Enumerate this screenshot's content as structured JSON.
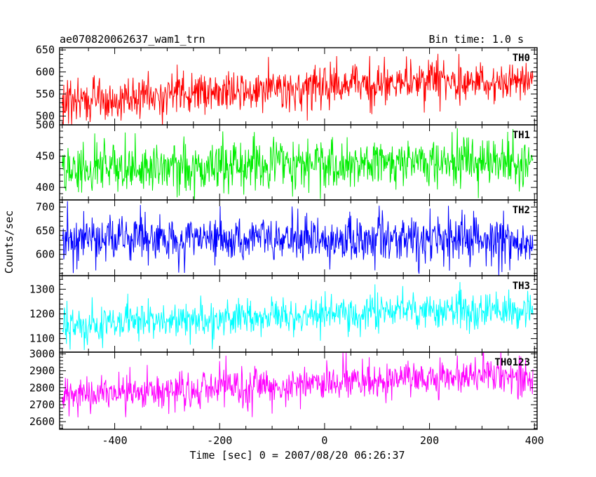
{
  "header": {
    "object_name": "ae070820062637_wam1_trn",
    "bin_time": "Bin time: 1.0 s"
  },
  "chart_data": {
    "type": "line",
    "xlabel": "Time [sec] 0 = 2007/08/20 06:26:37",
    "ylabel": "Counts/sec",
    "xlim": [
      -505,
      405
    ],
    "xticks": [
      -400,
      -200,
      0,
      200,
      400
    ],
    "x_start": -500,
    "x_end": 397,
    "bin_time_s": 1.0,
    "grid": false,
    "panels": [
      {
        "name": "TH0",
        "color": "#ff0000",
        "ylim": [
          480,
          655
        ],
        "yticks": [
          500,
          550,
          600,
          650
        ],
        "trend": {
          "x": [
            -500,
            -200,
            0,
            200,
            397
          ],
          "y": [
            530,
            555,
            568,
            577,
            580
          ]
        },
        "noise_sd": 24
      },
      {
        "name": "TH1",
        "color": "#00ee00",
        "ylim": [
          380,
          500
        ],
        "yticks": [
          400,
          450,
          500
        ],
        "trend": {
          "x": [
            -500,
            -200,
            0,
            200,
            397
          ],
          "y": [
            432,
            433,
            438,
            440,
            440
          ]
        },
        "noise_sd": 20
      },
      {
        "name": "TH2",
        "color": "#0000ff",
        "ylim": [
          555,
          715
        ],
        "yticks": [
          600,
          650,
          700
        ],
        "trend": {
          "x": [
            -500,
            -200,
            0,
            200,
            397
          ],
          "y": [
            632,
            633,
            632,
            633,
            632
          ]
        },
        "noise_sd": 25
      },
      {
        "name": "TH3",
        "color": "#00ffff",
        "ylim": [
          1045,
          1355
        ],
        "yticks": [
          1100,
          1200,
          1300
        ],
        "trend": {
          "x": [
            -500,
            -200,
            0,
            200,
            397
          ],
          "y": [
            1160,
            1180,
            1200,
            1210,
            1215
          ]
        },
        "noise_sd": 38
      },
      {
        "name": "TH0123",
        "color": "#ff00ff",
        "ylim": [
          2555,
          3010
        ],
        "yticks": [
          2600,
          2700,
          2800,
          2900,
          3000
        ],
        "trend": {
          "x": [
            -500,
            -200,
            0,
            200,
            397
          ],
          "y": [
            2750,
            2790,
            2830,
            2860,
            2870
          ]
        },
        "noise_sd": 55
      }
    ]
  }
}
